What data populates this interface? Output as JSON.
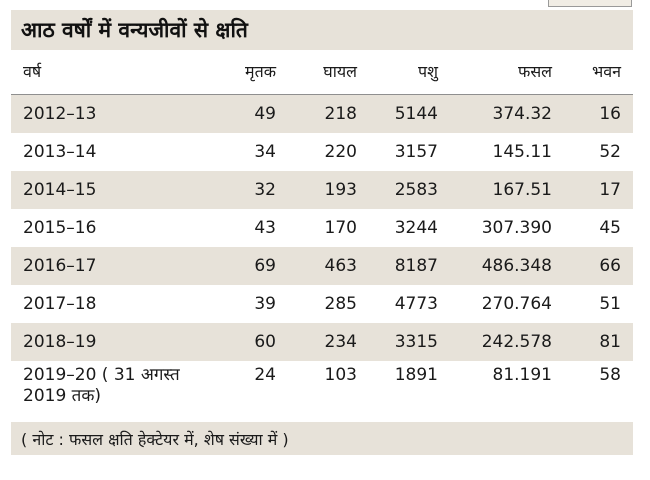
{
  "title": "आठ वर्षों में वन्यजीवों से क्षति",
  "columns": [
    "वर्ष",
    "मृतक",
    "घायल",
    "पशु",
    "फसल",
    "भवन"
  ],
  "rows": [
    {
      "year": "2012–13",
      "dead": "49",
      "injured": "218",
      "animals": "5144",
      "crop": "374.32",
      "buildings": "16"
    },
    {
      "year": "2013–14",
      "dead": "34",
      "injured": "220",
      "animals": "3157",
      "crop": "145.11",
      "buildings": "52"
    },
    {
      "year": "2014–15",
      "dead": "32",
      "injured": "193",
      "animals": "2583",
      "crop": "167.51",
      "buildings": "17"
    },
    {
      "year": "2015–16",
      "dead": "43",
      "injured": "170",
      "animals": "3244",
      "crop": "307.390",
      "buildings": "45"
    },
    {
      "year": "2016–17",
      "dead": "69",
      "injured": "463",
      "animals": "8187",
      "crop": "486.348",
      "buildings": "66"
    },
    {
      "year": "2017–18",
      "dead": "39",
      "injured": "285",
      "animals": "4773",
      "crop": "270.764",
      "buildings": "51"
    },
    {
      "year": "2018–19",
      "dead": "60",
      "injured": "234",
      "animals": "3315",
      "crop": "242.578",
      "buildings": "81"
    },
    {
      "year": "2019–20 ( 31 अगस्त 2019 तक)",
      "dead": "24",
      "injured": "103",
      "animals": "1891",
      "crop": "81.191",
      "buildings": "58"
    }
  ],
  "note": "( नोट : फसल क्षति हेक्टेयर में, शेष संख्या में )",
  "colors": {
    "band": "#e7e2d9",
    "text": "#1a1a1a"
  }
}
